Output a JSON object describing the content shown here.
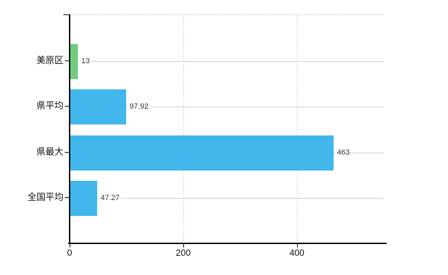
{
  "chart_data": {
    "type": "bar",
    "orientation": "horizontal",
    "title": "",
    "xlabel": "",
    "ylabel": "",
    "categories": [
      "美原区",
      "県平均",
      "県最大",
      "全国平均"
    ],
    "values": [
      13,
      97.92,
      463,
      47.27
    ],
    "value_labels": [
      "13",
      "97.92",
      "463",
      "47.27"
    ],
    "bar_colors": [
      "#72cb7e",
      "#41b7eb",
      "#41b7eb",
      "#41b7eb"
    ],
    "xticks": [
      0,
      200,
      400
    ],
    "xtick_labels": [
      "0",
      "200",
      "400"
    ],
    "xlim": [
      0,
      553
    ],
    "grid": true,
    "legend": false
  },
  "colors": {
    "bar_blue": "#41b7eb",
    "bar_green": "#72cb7e",
    "axis": "#000000",
    "row_gridline": "#cdd3c9",
    "vertical_gridline": "#d8d8d8"
  }
}
